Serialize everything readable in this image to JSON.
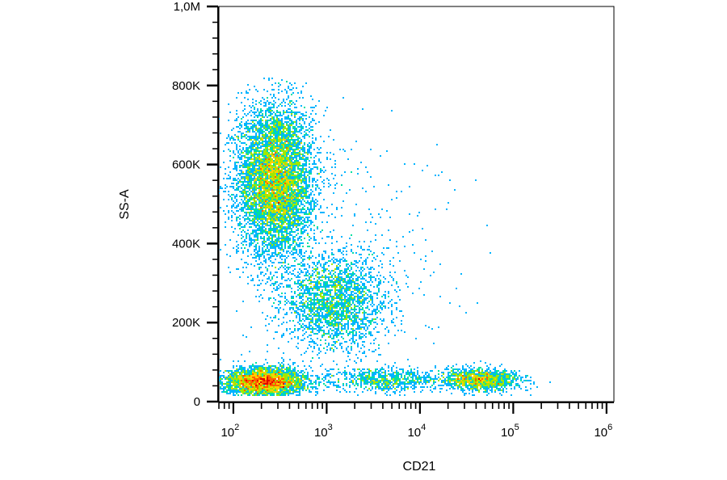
{
  "chart_data": {
    "type": "scatter",
    "subtype": "flow-cytometry-density-dot-plot",
    "title": "",
    "xlabel": "CD21",
    "ylabel": "SS-A",
    "x_scale": "log",
    "y_scale": "linear",
    "xlim": [
      70,
      1200000
    ],
    "ylim": [
      0,
      1000000
    ],
    "x_ticks": [
      {
        "value": 100,
        "base": "10",
        "exp": "2"
      },
      {
        "value": 1000,
        "base": "10",
        "exp": "3"
      },
      {
        "value": 10000,
        "base": "10",
        "exp": "4"
      },
      {
        "value": 100000,
        "base": "10",
        "exp": "5"
      },
      {
        "value": 1000000,
        "base": "10",
        "exp": "6"
      }
    ],
    "y_ticks": [
      {
        "value": 0,
        "label": "0"
      },
      {
        "value": 200000,
        "label": "200K"
      },
      {
        "value": 400000,
        "label": "400K"
      },
      {
        "value": 600000,
        "label": "600K"
      },
      {
        "value": 800000,
        "label": "800K"
      },
      {
        "value": 1000000,
        "label": "1,0M"
      }
    ],
    "grid": false,
    "legend": "none",
    "colormap": [
      "#0000c8",
      "#0050ff",
      "#00b4ff",
      "#00e0a0",
      "#a0e800",
      "#ffd000",
      "#ff6000",
      "#e00000"
    ],
    "populations": [
      {
        "center_x": 280,
        "center_y": 560000,
        "spread_log_x": 0.2,
        "spread_y": 95000,
        "weight": 0.46
      },
      {
        "center_x": 220,
        "center_y": 50000,
        "spread_log_x": 0.22,
        "spread_y": 18000,
        "weight": 0.22
      },
      {
        "center_x": 1200,
        "center_y": 250000,
        "spread_log_x": 0.28,
        "spread_y": 60000,
        "weight": 0.16
      },
      {
        "center_x": 45000,
        "center_y": 55000,
        "spread_log_x": 0.22,
        "spread_y": 14000,
        "weight": 0.09
      },
      {
        "center_x": 4000,
        "center_y": 55000,
        "spread_log_x": 0.3,
        "spread_y": 15000,
        "weight": 0.05
      },
      {
        "center_x": 2000,
        "center_y": 400000,
        "spread_log_x": 0.55,
        "spread_y": 150000,
        "weight": 0.02
      }
    ],
    "total_events": 15000
  }
}
